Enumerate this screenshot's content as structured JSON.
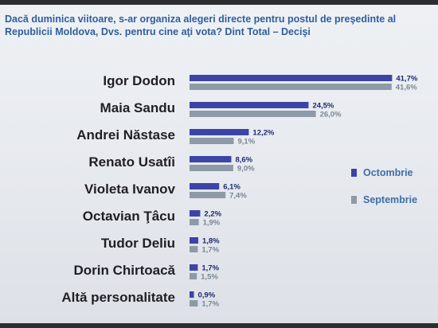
{
  "title": "Dacă duminica viitoare, s-ar organiza alegeri directe pentru postul de preşedinte al Republicii Moldova, Dvs. pentru cine aţi vota? Dint Total – Decişi",
  "colors": {
    "series_1": "#3c44a8",
    "series_2": "#8d9aa8",
    "title": "#2f5f9c"
  },
  "chart_data": {
    "type": "bar",
    "orientation": "horizontal",
    "title": "Dacă duminica viitoare, s-ar organiza alegeri directe pentru postul de preşedinte al Republicii Moldova, Dvs. pentru cine aţi vota? Dint Total – Decişi",
    "categories": [
      "Igor Dodon",
      "Maia Sandu",
      "Andrei Năstase",
      "Renato Usatîi",
      "Violeta Ivanov",
      "Octavian Ţâcu",
      "Tudor Deliu",
      "Dorin Chirtoacă",
      "Altă personalitate"
    ],
    "series": [
      {
        "name": "Octombrie",
        "values": [
          41.7,
          24.5,
          12.2,
          8.6,
          6.1,
          2.2,
          1.8,
          1.7,
          0.9
        ],
        "labels": [
          "41,7%",
          "24,5%",
          "12,2%",
          "8,6%",
          "6,1%",
          "2,2%",
          "1,8%",
          "1,7%",
          "0,9%"
        ]
      },
      {
        "name": "Septembrie",
        "values": [
          41.6,
          26.0,
          9.1,
          9.0,
          7.4,
          1.9,
          1.7,
          1.5,
          1.7
        ],
        "labels": [
          "41,6%",
          "26,0%",
          "9,1%",
          "9,0%",
          "7,4%",
          "1,9%",
          "1,7%",
          "1,5%",
          "1,7%"
        ]
      }
    ],
    "xlim": [
      0,
      45
    ],
    "legend_position": "right",
    "grid": false
  }
}
